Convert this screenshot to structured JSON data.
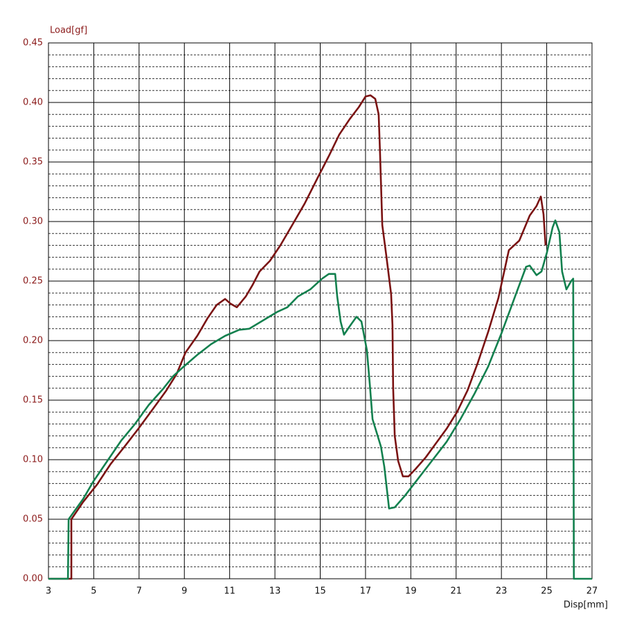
{
  "chart_data": {
    "type": "line",
    "y_label": "Load[gf]",
    "x_label": "Disp[mm]",
    "xlim": [
      3,
      27
    ],
    "xticks": [
      3,
      5,
      7,
      9,
      11,
      13,
      15,
      17,
      19,
      21,
      23,
      25,
      27
    ],
    "ylim": [
      0,
      0.45
    ],
    "yticks": [
      {
        "value": 0,
        "label": "0.00"
      },
      0.05,
      {
        "value": 0.1,
        "label": "0.10"
      },
      0.15,
      {
        "value": 0.2,
        "label": "0.20"
      },
      0.25,
      {
        "value": 0.3,
        "label": "0.30"
      },
      0.35,
      {
        "value": 0.4,
        "label": "0.40"
      },
      0.45
    ],
    "grid": true,
    "series": [
      {
        "color": "#7a1212",
        "x": [
          3,
          4.01,
          4.01,
          4.53,
          5.14,
          5.75,
          6.36,
          6.97,
          7.59,
          8.2,
          8.66,
          9.05,
          9.57,
          10.03,
          10.43,
          10.8,
          11.04,
          11.32,
          11.71,
          12.02,
          12.32,
          12.78,
          13.24,
          13.7,
          14.31,
          14.92,
          15.38,
          15.84,
          16.3,
          16.7,
          17.0,
          17.22,
          17.43,
          17.58,
          17.64,
          17.74,
          17.92,
          18.13,
          18.19,
          18.22,
          18.29,
          18.44,
          18.65,
          18.9,
          19.2,
          19.66,
          20.12,
          20.58,
          21.04,
          21.5,
          21.95,
          22.41,
          22.87,
          23.33,
          23.79,
          24.25,
          24.55,
          24.74,
          24.86,
          24.95
        ],
        "values": [
          0,
          0,
          0.05,
          0.0645,
          0.079,
          0.0965,
          0.111,
          0.126,
          0.142,
          0.158,
          0.172,
          0.19,
          0.204,
          0.219,
          0.23,
          0.235,
          0.231,
          0.228,
          0.237,
          0.247,
          0.258,
          0.267,
          0.28,
          0.295,
          0.315,
          0.338,
          0.355,
          0.373,
          0.386,
          0.396,
          0.405,
          0.406,
          0.403,
          0.39,
          0.358,
          0.297,
          0.271,
          0.239,
          0.213,
          0.16,
          0.12,
          0.099,
          0.086,
          0.086,
          0.092,
          0.102,
          0.114,
          0.126,
          0.14,
          0.158,
          0.181,
          0.207,
          0.236,
          0.276,
          0.284,
          0.305,
          0.313,
          0.321,
          0.306,
          0.28
        ]
      },
      {
        "color": "#12804e",
        "x": [
          3,
          3.86,
          3.89,
          4.53,
          4.99,
          5.6,
          6.21,
          6.82,
          7.43,
          8.04,
          8.5,
          8.96,
          9.57,
          10.18,
          10.8,
          11.41,
          11.87,
          12.48,
          13.09,
          13.55,
          14.01,
          14.56,
          15.08,
          15.38,
          15.66,
          15.75,
          15.9,
          16.05,
          16.3,
          16.6,
          16.82,
          17.06,
          17.19,
          17.31,
          17.52,
          17.68,
          17.83,
          18.04,
          18.29,
          18.75,
          19.36,
          19.97,
          20.58,
          21.19,
          21.8,
          22.41,
          23.02,
          23.64,
          24.09,
          24.25,
          24.55,
          24.77,
          25.01,
          25.26,
          25.38,
          25.56,
          25.68,
          25.87,
          26.08,
          26.17,
          26.2,
          27
        ],
        "values": [
          0,
          0,
          0.05,
          0.067,
          0.082,
          0.099,
          0.116,
          0.13,
          0.146,
          0.159,
          0.17,
          0.178,
          0.188,
          0.197,
          0.204,
          0.209,
          0.21,
          0.217,
          0.224,
          0.228,
          0.237,
          0.243,
          0.252,
          0.256,
          0.256,
          0.237,
          0.216,
          0.205,
          0.212,
          0.22,
          0.216,
          0.192,
          0.163,
          0.134,
          0.121,
          0.111,
          0.094,
          0.059,
          0.06,
          0.07,
          0.085,
          0.1,
          0.115,
          0.134,
          0.155,
          0.178,
          0.207,
          0.239,
          0.262,
          0.263,
          0.255,
          0.258,
          0.274,
          0.295,
          0.301,
          0.291,
          0.258,
          0.243,
          0.25,
          0.252,
          0,
          0
        ]
      }
    ]
  }
}
